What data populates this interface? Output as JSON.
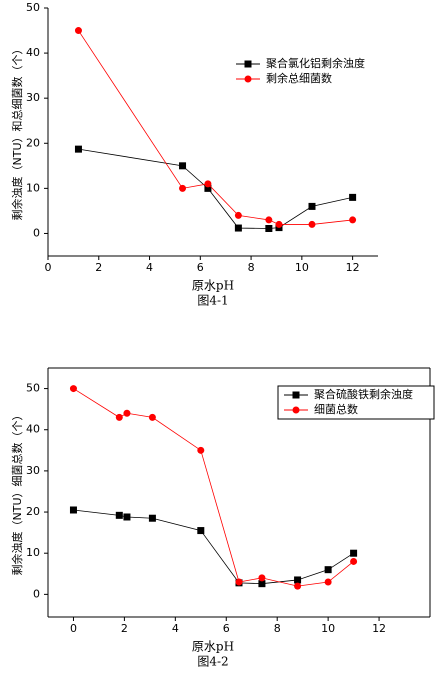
{
  "chart_data": [
    {
      "type": "line",
      "caption": "图4-1",
      "x_label": "原水pH",
      "y_label": "剩余浊度（NTU）和总细菌数（个）",
      "xlim": [
        0,
        13
      ],
      "xticks": [
        0,
        2,
        4,
        6,
        8,
        10,
        12
      ],
      "ylim": [
        -5,
        50
      ],
      "yticks": [
        0,
        10,
        20,
        30,
        40,
        50
      ],
      "legend": "upper right",
      "frame": false,
      "series": [
        {
          "name": "聚合氯化铝剩余浊度",
          "color": "#000000",
          "marker": "square",
          "x": [
            1.2,
            5.3,
            6.3,
            7.5,
            8.7,
            9.1,
            10.4,
            12
          ],
          "values": [
            18.7,
            15,
            10,
            1.2,
            1.1,
            1.3,
            6,
            8
          ]
        },
        {
          "name": "剩余总细菌数",
          "color": "#ff0000",
          "marker": "circle",
          "x": [
            1.2,
            5.3,
            6.3,
            7.5,
            8.7,
            9.1,
            10.4,
            12
          ],
          "values": [
            45,
            10,
            11,
            4,
            3,
            2,
            2,
            3
          ]
        }
      ]
    },
    {
      "type": "line",
      "caption": "图4-2",
      "x_label": "原水pH",
      "y_label": "剩余浊度（NTU）细菌总数（个）",
      "xlim": [
        -1,
        14
      ],
      "xticks": [
        0,
        2,
        4,
        6,
        8,
        10,
        12
      ],
      "ylim": [
        -5.5,
        55
      ],
      "yticks": [
        0,
        10,
        20,
        30,
        40,
        50
      ],
      "legend": "upper right",
      "frame": true,
      "series": [
        {
          "name": "聚合硫酸铁剩余浊度",
          "color": "#000000",
          "marker": "square",
          "x": [
            0,
            1.8,
            2.1,
            3.1,
            5,
            6.5,
            7.4,
            8.8,
            10,
            11
          ],
          "values": [
            20.5,
            19.2,
            18.8,
            18.5,
            15.5,
            2.8,
            2.6,
            3.5,
            6,
            10
          ]
        },
        {
          "name": "细菌总数",
          "color": "#ff0000",
          "marker": "circle",
          "x": [
            0,
            1.8,
            2.1,
            3.1,
            5,
            6.5,
            7.4,
            8.8,
            10,
            11
          ],
          "values": [
            50,
            43,
            44,
            43,
            35,
            3,
            4,
            2,
            3,
            8
          ]
        }
      ]
    }
  ]
}
